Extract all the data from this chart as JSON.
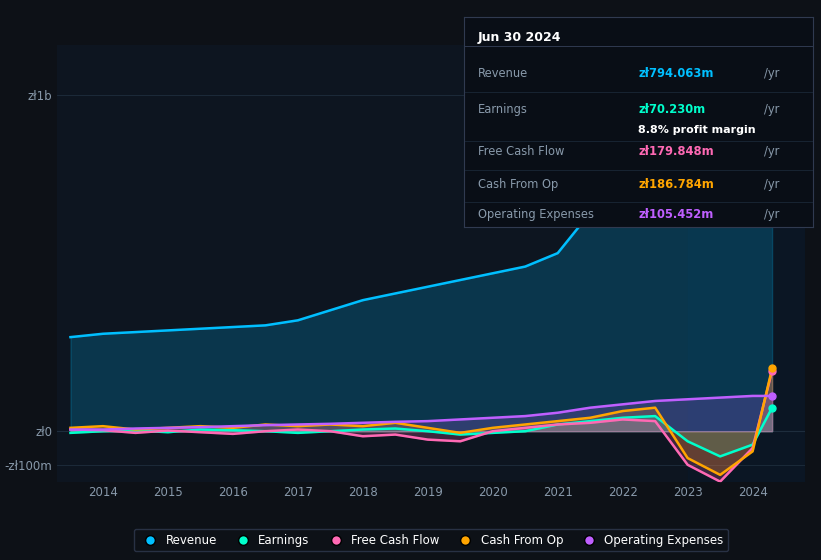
{
  "bg_color": "#0d1117",
  "chart_bg": "#0d1520",
  "legend": [
    {
      "label": "Revenue",
      "color": "#00bfff"
    },
    {
      "label": "Earnings",
      "color": "#00ffcc"
    },
    {
      "label": "Free Cash Flow",
      "color": "#ff69b4"
    },
    {
      "label": "Cash From Op",
      "color": "#ffa500"
    },
    {
      "label": "Operating Expenses",
      "color": "#bf5fff"
    }
  ],
  "tooltip": {
    "date": "Jun 30 2024",
    "rows": [
      {
        "label": "Revenue",
        "val": "zł794.063m",
        "color": "#00bfff",
        "sub": null
      },
      {
        "label": "Earnings",
        "val": "zł70.230m",
        "color": "#00ffcc",
        "sub": "8.8% profit margin"
      },
      {
        "label": "Free Cash Flow",
        "val": "zł179.848m",
        "color": "#ff69b4",
        "sub": null
      },
      {
        "label": "Cash From Op",
        "val": "zł186.784m",
        "color": "#ffa500",
        "sub": null
      },
      {
        "label": "Operating Expenses",
        "val": "zł105.452m",
        "color": "#bf5fff",
        "sub": null
      }
    ]
  },
  "x": [
    2013.5,
    2014.0,
    2014.5,
    2015.0,
    2015.5,
    2016.0,
    2016.5,
    2017.0,
    2017.5,
    2018.0,
    2018.5,
    2019.0,
    2019.5,
    2020.0,
    2020.5,
    2021.0,
    2021.5,
    2022.0,
    2022.5,
    2023.0,
    2023.5,
    2024.0,
    2024.3
  ],
  "revenue": [
    280,
    290,
    295,
    300,
    305,
    310,
    315,
    330,
    360,
    390,
    410,
    430,
    450,
    470,
    490,
    530,
    650,
    860,
    1060,
    920,
    820,
    800,
    795
  ],
  "earnings": [
    -5,
    0,
    2,
    -3,
    5,
    3,
    0,
    -5,
    0,
    5,
    8,
    0,
    -10,
    -5,
    0,
    20,
    30,
    40,
    45,
    -30,
    -75,
    -40,
    70
  ],
  "fcf": [
    5,
    3,
    -5,
    2,
    -3,
    -8,
    0,
    5,
    0,
    -15,
    -10,
    -25,
    -30,
    0,
    10,
    20,
    25,
    35,
    30,
    -100,
    -150,
    -50,
    180
  ],
  "cashfromop": [
    10,
    15,
    5,
    10,
    15,
    10,
    20,
    15,
    20,
    15,
    25,
    10,
    -5,
    10,
    20,
    30,
    40,
    60,
    70,
    -80,
    -130,
    -60,
    187
  ],
  "opex": [
    5,
    5,
    8,
    10,
    12,
    15,
    18,
    20,
    22,
    25,
    28,
    30,
    35,
    40,
    45,
    55,
    70,
    80,
    90,
    95,
    100,
    105,
    105
  ],
  "ylim": [
    -150,
    1150
  ],
  "yticks": [
    -100,
    0,
    1000
  ],
  "ytick_labels": [
    "-zł100m",
    "zł0",
    "zł1b"
  ],
  "xticks": [
    2014,
    2015,
    2016,
    2017,
    2018,
    2019,
    2020,
    2021,
    2022,
    2023,
    2024
  ],
  "xlim": [
    2013.3,
    2024.8
  ]
}
